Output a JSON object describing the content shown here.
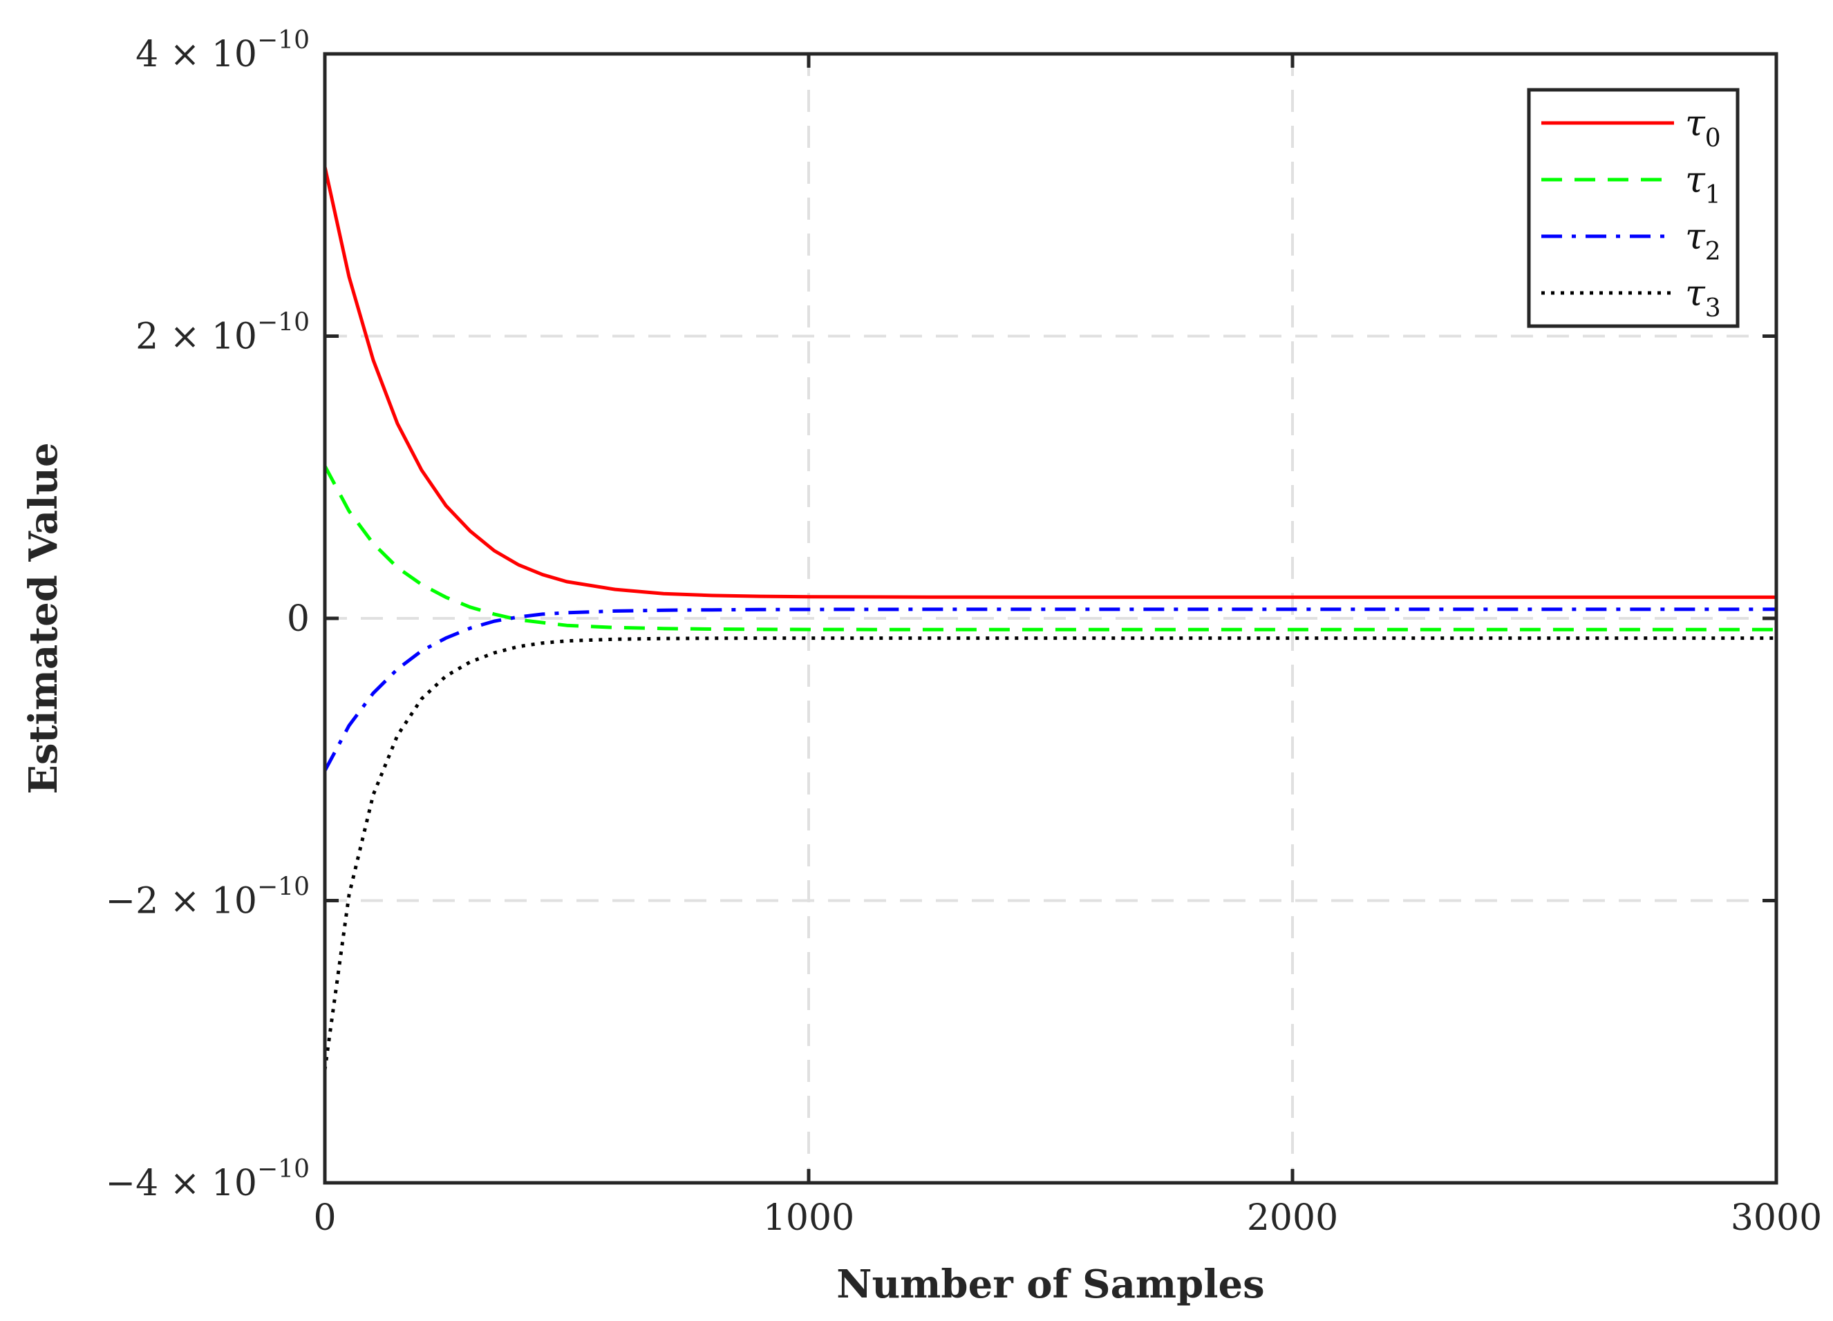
{
  "chart_data": {
    "type": "line",
    "xlabel": "Number of Samples",
    "ylabel": "Estimated Value",
    "xlim": [
      0,
      3000
    ],
    "ylim": [
      -4e-10,
      4e-10
    ],
    "grid": true,
    "legend_position": "top-right",
    "x_ticks": [
      {
        "value": 0,
        "label": "0"
      },
      {
        "value": 1000,
        "label": "1000"
      },
      {
        "value": 2000,
        "label": "2000"
      },
      {
        "value": 3000,
        "label": "3000"
      }
    ],
    "y_ticks": [
      {
        "value": 4e-10,
        "mantissa": "4",
        "times": "×",
        "base": "10",
        "exponent": "−10"
      },
      {
        "value": 2e-10,
        "mantissa": "2",
        "times": "×",
        "base": "10",
        "exponent": "−10"
      },
      {
        "value": 0,
        "mantissa": "0",
        "times": "",
        "base": "",
        "exponent": ""
      },
      {
        "value": -2e-10,
        "mantissa": "−2",
        "times": "×",
        "base": "10",
        "exponent": "−10"
      },
      {
        "value": -4e-10,
        "mantissa": "−4",
        "times": "×",
        "base": "10",
        "exponent": "−10"
      }
    ],
    "x": [
      0,
      50,
      100,
      150,
      200,
      250,
      300,
      350,
      400,
      450,
      500,
      600,
      700,
      800,
      900,
      1000,
      1250,
      1500,
      1750,
      2000,
      2250,
      2500,
      2750,
      3000
    ],
    "series": [
      {
        "name": "τ0",
        "symbol": "τ",
        "subscript": "0",
        "color": "#ff0000",
        "dash": "solid",
        "values": [
          3.2e-10,
          2.42e-10,
          1.83e-10,
          1.38e-10,
          1.05e-10,
          8e-11,
          6.2e-11,
          4.8e-11,
          3.8e-11,
          3.1e-11,
          2.6e-11,
          2.05e-11,
          1.75e-11,
          1.62e-11,
          1.56e-11,
          1.53e-11,
          1.51e-11,
          1.5e-11,
          1.5e-11,
          1.5e-11,
          1.5e-11,
          1.5e-11,
          1.5e-11,
          1.5e-11
        ]
      },
      {
        "name": "τ1",
        "symbol": "τ",
        "subscript": "1",
        "color": "#00ff00",
        "dash": "dashed",
        "values": [
          1.08e-10,
          7.6e-11,
          5.3e-11,
          3.6e-11,
          2.4e-11,
          1.5e-11,
          8e-12,
          3e-12,
          -1e-12,
          -3e-12,
          -5e-12,
          -6.5e-12,
          -7.2e-12,
          -7.6e-12,
          -7.8e-12,
          -7.9e-12,
          -8e-12,
          -8e-12,
          -8e-12,
          -8e-12,
          -8e-12,
          -8e-12,
          -8e-12,
          -8e-12
        ]
      },
      {
        "name": "τ2",
        "symbol": "τ",
        "subscript": "2",
        "color": "#0000ff",
        "dash": "dashdot",
        "values": [
          -1.08e-10,
          -7.6e-11,
          -5.3e-11,
          -3.6e-11,
          -2.3e-11,
          -1.4e-11,
          -7e-12,
          -2e-12,
          1e-12,
          3e-12,
          4e-12,
          5.2e-12,
          5.8e-12,
          6e-12,
          6.2e-12,
          6.3e-12,
          6.4e-12,
          6.4e-12,
          6.4e-12,
          6.4e-12,
          6.4e-12,
          6.4e-12,
          6.4e-12,
          6.4e-12
        ]
      },
      {
        "name": "τ3",
        "symbol": "τ",
        "subscript": "3",
        "color": "#000000",
        "dash": "dotted",
        "values": [
          -3.2e-10,
          -1.96e-10,
          -1.25e-10,
          -8.3e-11,
          -5.7e-11,
          -4.1e-11,
          -3.1e-11,
          -2.45e-11,
          -2e-11,
          -1.75e-11,
          -1.6e-11,
          -1.48e-11,
          -1.43e-11,
          -1.41e-11,
          -1.4e-11,
          -1.4e-11,
          -1.4e-11,
          -1.4e-11,
          -1.4e-11,
          -1.4e-11,
          -1.4e-11,
          -1.4e-11,
          -1.4e-11,
          -1.4e-11
        ]
      }
    ]
  }
}
